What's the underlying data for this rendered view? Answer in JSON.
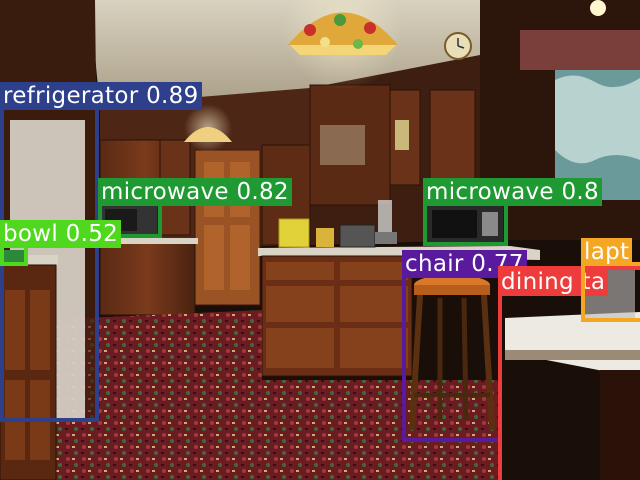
{
  "image": {
    "description_free": true
  },
  "detections": [
    {
      "label": "refrigerator 0.89",
      "class": "refrigerator",
      "score": 0.89,
      "color": "#2e3f8c"
    },
    {
      "label": "microwave 0.82",
      "class": "microwave",
      "score": 0.82,
      "color": "#1f9a33"
    },
    {
      "label": "bowl 0.52",
      "class": "bowl",
      "score": 0.52,
      "color": "#4fd81e"
    },
    {
      "label": "microwave 0.8",
      "class": "microwave",
      "score": 0.8,
      "color": "#1f9a33"
    },
    {
      "label": "chair 0.77",
      "class": "chair",
      "score": 0.77,
      "color": "#5a1a9e"
    },
    {
      "label": "dining ta",
      "class": "dining table",
      "color": "#ee3b3b"
    },
    {
      "label": "lapt",
      "class": "laptop",
      "color": "#f5a623"
    }
  ]
}
